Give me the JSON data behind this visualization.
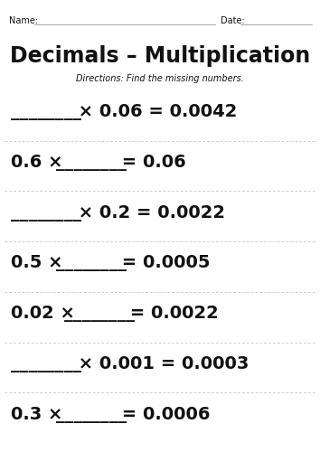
{
  "title": "Decimals – Multiplication",
  "directions": "Directions: Find the missing numbers.",
  "name_label": "Name:",
  "date_label": "Date:",
  "problems": [
    "________  x  0.06 = 0.0042",
    "0.6  x  ________  = 0.06",
    "________  x  0.2 = 0.0022",
    "0.5  x  ________  = 0.0005",
    "0.02  x  ________  = 0.0022",
    "________  x  0.001 = 0.0003",
    "0.3  x  ________  = 0.0006"
  ],
  "problem_parts": [
    [
      "________",
      " × 0.06 = 0.0042"
    ],
    [
      "0.6 × ",
      "________",
      " = 0.06"
    ],
    [
      "________",
      " × 0.2 = 0.0022"
    ],
    [
      "0.5 × ",
      "________",
      " = 0.0005"
    ],
    [
      "0.02 × ",
      "________",
      " = 0.0022"
    ],
    [
      "________",
      " × 0.001 = 0.0003"
    ],
    [
      "0.3 × ",
      "________",
      " = 0.0006"
    ]
  ],
  "bg_color": "#ffffff",
  "text_color": "#111111",
  "divider_color": "#bbbbbb",
  "title_fontsize": 17,
  "directions_fontsize": 7,
  "problem_fontsize": 14,
  "header_fontsize": 7
}
